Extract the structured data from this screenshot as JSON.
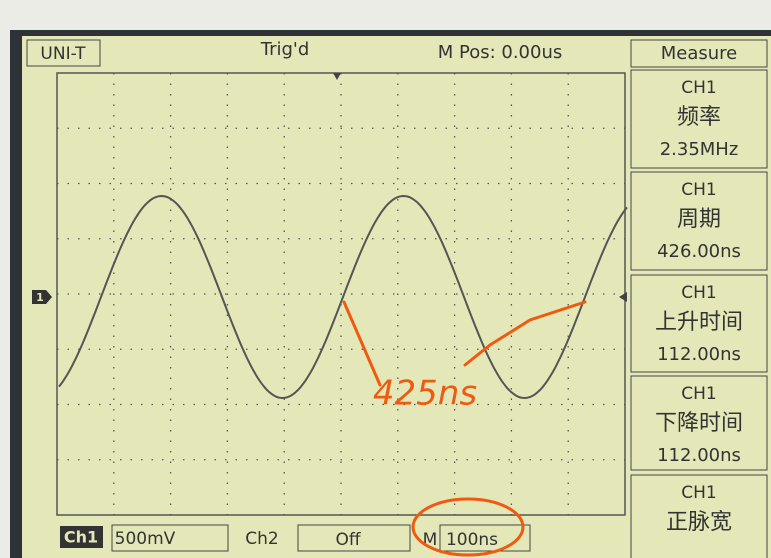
{
  "header": {
    "brand": "UNI-T",
    "status": "Trig'd",
    "position": "M Pos: 0.00us",
    "menu": "Measure"
  },
  "measurements": [
    {
      "channel": "CH1",
      "label": "频率",
      "value": "2.35MHz"
    },
    {
      "channel": "CH1",
      "label": "周期",
      "value": "426.00ns"
    },
    {
      "channel": "CH1",
      "label": "上升时间",
      "value": "112.00ns"
    },
    {
      "channel": "CH1",
      "label": "下降时间",
      "value": "112.00ns"
    },
    {
      "channel": "CH1",
      "label": "正脉宽"
    }
  ],
  "footer": {
    "ch1": "Ch1",
    "ch1_scale": "500mV",
    "ch2": "Ch2",
    "ch2_state": "Off",
    "timebase_prefix": "M",
    "timebase": "100ns"
  },
  "trace_marker": "1",
  "annotation": "425ns"
}
